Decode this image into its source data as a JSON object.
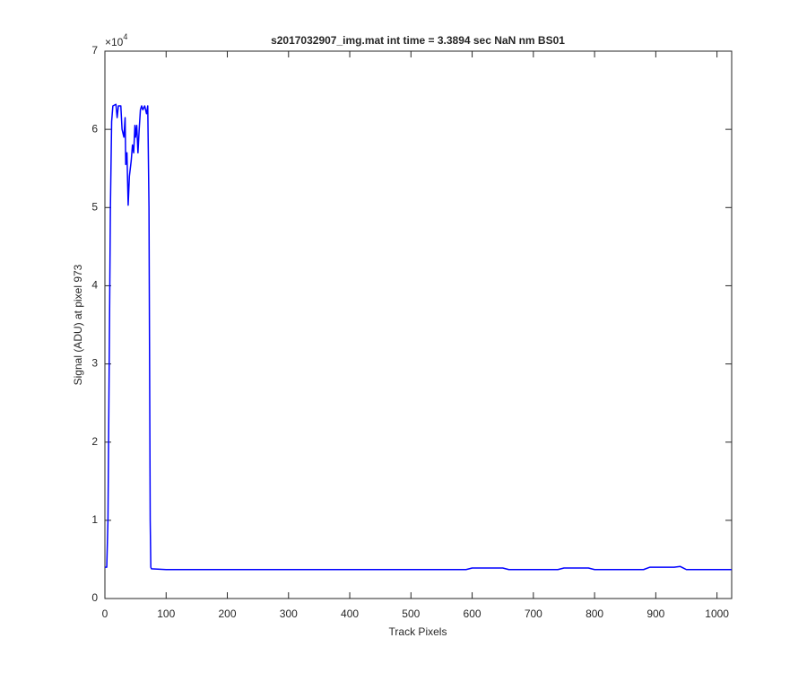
{
  "chart_data": {
    "type": "line",
    "title": "s2017032907_img.mat int time = 3.3894 sec  NaN nm BS01",
    "x_label": "Track Pixels",
    "y_label": "Signal (ADU) at pixel 973",
    "y_multiplier_base": "×10",
    "y_multiplier_exponent": "4",
    "color": "#0000ff",
    "x": [
      0,
      3,
      5,
      7,
      9,
      11,
      13,
      18,
      20,
      22,
      26,
      28,
      31,
      33,
      34,
      36,
      38,
      40,
      43,
      45,
      47,
      49,
      50,
      52,
      54,
      56,
      58,
      60,
      62,
      65,
      68,
      70,
      72,
      74,
      75,
      76,
      100,
      300,
      500,
      590,
      600,
      650,
      660,
      740,
      750,
      790,
      800,
      880,
      890,
      930,
      940,
      950,
      1024
    ],
    "values": [
      0.4,
      0.4,
      1.0,
      3.0,
      5.0,
      6.1,
      6.3,
      6.32,
      6.15,
      6.3,
      6.3,
      6.0,
      5.9,
      6.15,
      5.55,
      5.7,
      5.03,
      5.4,
      5.6,
      5.8,
      5.7,
      6.05,
      5.9,
      6.05,
      5.7,
      6.0,
      6.25,
      6.3,
      6.25,
      6.3,
      6.2,
      6.3,
      5.0,
      1.0,
      0.4,
      0.38,
      0.37,
      0.37,
      0.37,
      0.37,
      0.39,
      0.39,
      0.37,
      0.37,
      0.39,
      0.39,
      0.37,
      0.37,
      0.4,
      0.4,
      0.41,
      0.37,
      0.37
    ],
    "xlim": [
      0,
      1024
    ],
    "ylim": [
      0,
      7
    ],
    "xticks": [
      0,
      100,
      200,
      300,
      400,
      500,
      600,
      700,
      800,
      900,
      1000
    ],
    "yticks": [
      0,
      1,
      2,
      3,
      4,
      5,
      6,
      7
    ]
  }
}
